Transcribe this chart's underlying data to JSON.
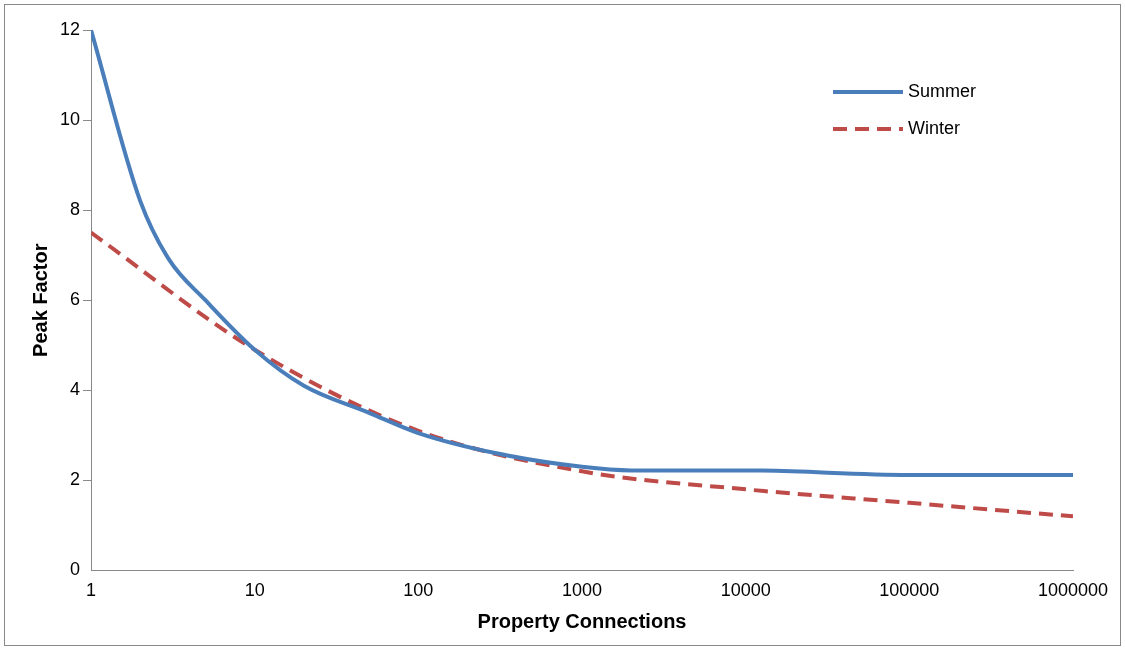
{
  "chart_data": {
    "type": "line",
    "xlabel": "Property Connections",
    "ylabel": "Peak Factor",
    "log": "x",
    "xlim": [
      1,
      1000000
    ],
    "xticks": [
      1,
      10,
      100,
      1000,
      10000,
      100000,
      1000000
    ],
    "ylim": [
      0,
      12
    ],
    "yticks": [
      0,
      2,
      4,
      6,
      8,
      10,
      12
    ],
    "grid": false,
    "legend": "top right",
    "marker": "none",
    "series": [
      {
        "name": "Summer",
        "color": "#4a7ebb",
        "line_style": "solid",
        "x": [
          1,
          2,
          3,
          5,
          10,
          20,
          50,
          100,
          300,
          1000,
          2000,
          10000,
          100000,
          1000000
        ],
        "values": [
          12,
          8.2,
          6.9,
          6.0,
          4.9,
          4.1,
          3.5,
          3.05,
          2.6,
          2.3,
          2.22,
          2.22,
          2.12,
          2.12
        ]
      },
      {
        "name": "Winter",
        "color": "#be4b48",
        "line_style": "dashed",
        "x": [
          1,
          10,
          100,
          1000,
          10000,
          100000,
          1000000
        ],
        "values": [
          7.5,
          4.9,
          3.1,
          2.2,
          1.8,
          1.5,
          1.2
        ]
      }
    ]
  }
}
